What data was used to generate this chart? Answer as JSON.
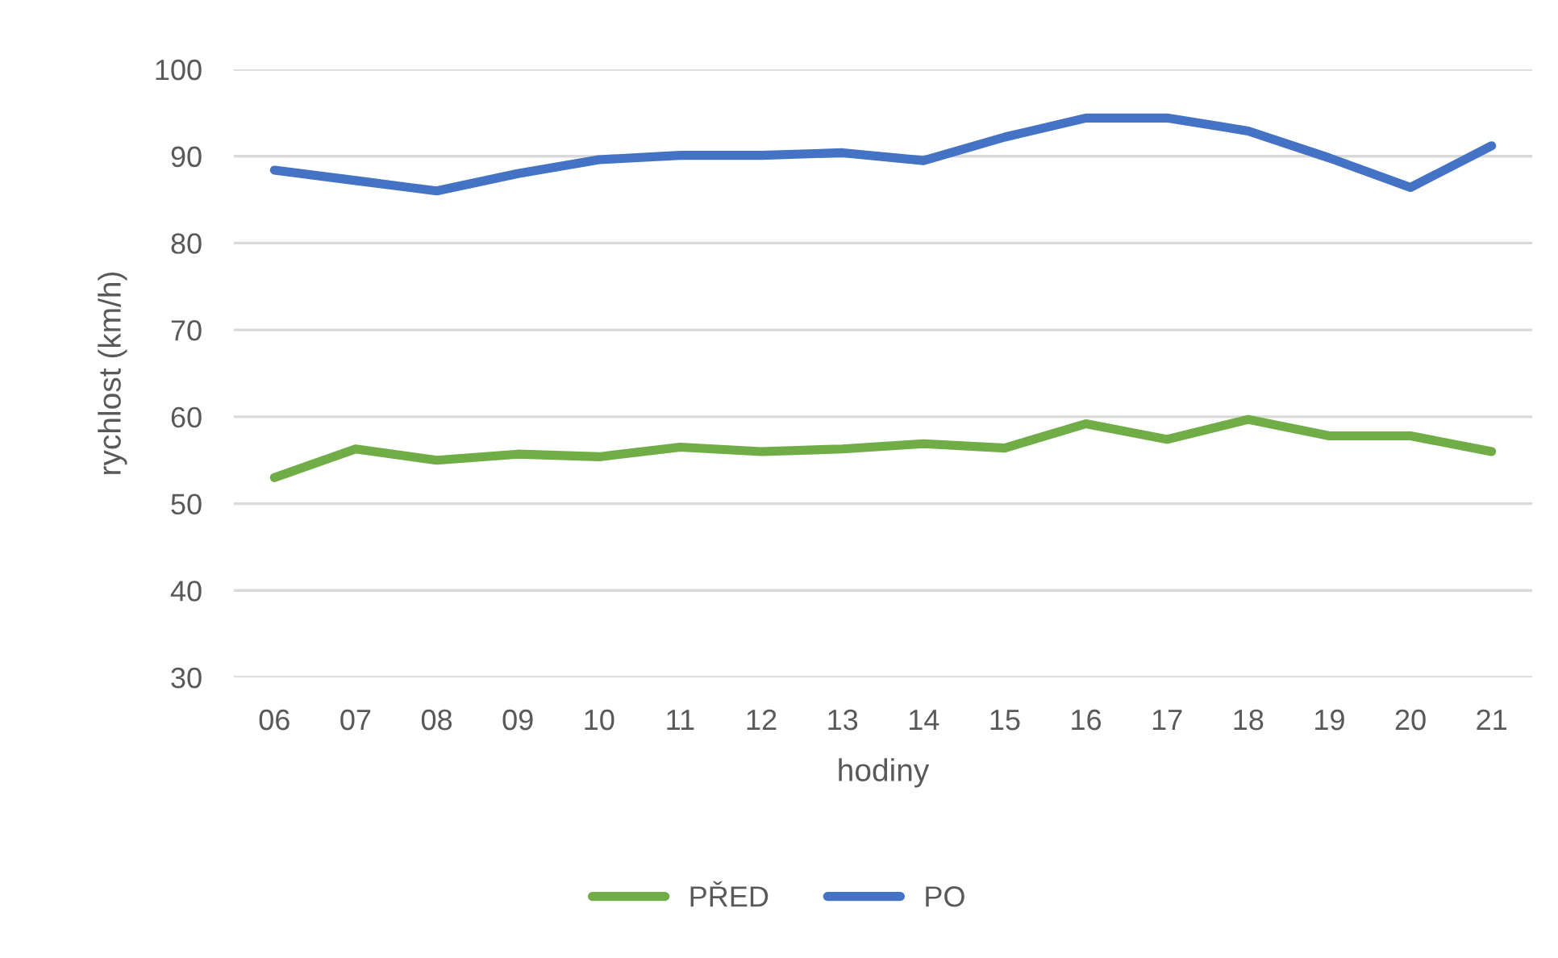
{
  "chart_data": {
    "type": "line",
    "xlabel": "hodiny",
    "ylabel": "rychlost (km/h)",
    "categories": [
      "06",
      "07",
      "08",
      "09",
      "10",
      "11",
      "12",
      "13",
      "14",
      "15",
      "16",
      "17",
      "18",
      "19",
      "20",
      "21"
    ],
    "series": [
      {
        "name": "PŘED",
        "color": "#70ad47",
        "values": [
          53.0,
          56.3,
          55.0,
          55.7,
          55.4,
          56.5,
          56.0,
          56.3,
          56.9,
          56.4,
          59.2,
          57.4,
          59.7,
          57.8,
          57.8,
          56.0
        ]
      },
      {
        "name": "PO",
        "color": "#4472c4",
        "values": [
          88.4,
          87.2,
          86.0,
          88.0,
          89.6,
          90.1,
          90.1,
          90.4,
          89.5,
          92.2,
          94.4,
          94.4,
          92.9,
          89.8,
          86.4,
          91.2
        ]
      }
    ],
    "ylim": [
      30,
      100
    ],
    "yticks": [
      30,
      40,
      50,
      60,
      70,
      80,
      90,
      100
    ],
    "grid": "y",
    "legend": "bottom",
    "marker": "none",
    "line_style": "solid"
  }
}
